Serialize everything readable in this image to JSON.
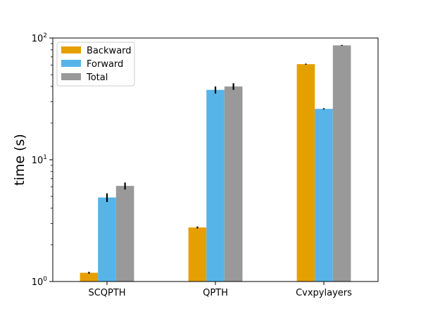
{
  "chart_data": {
    "type": "bar",
    "title": "",
    "xlabel": "",
    "ylabel": "time (s)",
    "yscale": "log",
    "ylim": [
      1,
      100
    ],
    "yticks": [
      {
        "value": 1,
        "base": "10",
        "exp": "0"
      },
      {
        "value": 10,
        "base": "10",
        "exp": "1"
      },
      {
        "value": 100,
        "base": "10",
        "exp": "2"
      }
    ],
    "categories": [
      "SCQPTH",
      "QPTH",
      "Cvxpylayers"
    ],
    "series": [
      {
        "name": "Backward",
        "color": "#E69F00",
        "values": [
          1.18,
          2.78,
          61.0
        ],
        "errors": [
          0.02,
          0.05,
          0.6
        ]
      },
      {
        "name": "Forward",
        "color": "#56B4E9",
        "values": [
          4.9,
          37.5,
          26.2
        ],
        "errors": [
          0.4,
          2.5,
          0.3
        ]
      },
      {
        "name": "Total",
        "color": "#999999",
        "values": [
          6.1,
          40.0,
          87.0
        ],
        "errors": [
          0.4,
          2.5,
          0.8
        ]
      }
    ],
    "error_bar_color": "#000000",
    "legend_position": "upper-left",
    "grid": false
  }
}
